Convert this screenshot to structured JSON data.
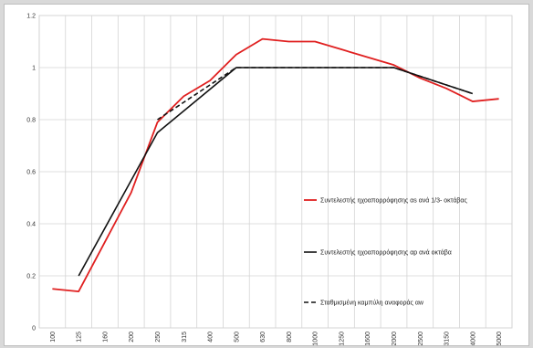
{
  "chart_data": {
    "type": "line",
    "categories": [
      "100",
      "125",
      "160",
      "200",
      "250",
      "315",
      "400",
      "500",
      "630",
      "800",
      "1000",
      "1250",
      "1600",
      "2000",
      "2500",
      "3150",
      "4000",
      "5000"
    ],
    "ylim": [
      0,
      1.2
    ],
    "yticks": [
      "0",
      "0.2",
      "0.4",
      "0.6",
      "0.8",
      "1",
      "1.2"
    ],
    "ytick_values": [
      0,
      0.2,
      0.4,
      0.6,
      0.8,
      1.0,
      1.2
    ],
    "grid": {
      "x": true,
      "y": true
    },
    "legend_position": "right",
    "series": [
      {
        "name": "Συντελεστής ηχοαπορρόφησης αs ανά 1/3- οκτάβας",
        "color": "#e02020",
        "dash": "solid",
        "values": [
          0.15,
          0.14,
          0.33,
          0.52,
          0.79,
          0.89,
          0.95,
          1.05,
          1.11,
          1.1,
          1.1,
          1.07,
          1.04,
          1.01,
          0.96,
          0.92,
          0.87,
          0.88
        ]
      },
      {
        "name": "Συντελεστής ηχοαπορρόφησης αp ανά οκτάβα",
        "color": "#111111",
        "dash": "solid",
        "values": [
          null,
          0.2,
          null,
          null,
          0.75,
          null,
          null,
          1.0,
          null,
          null,
          1.0,
          null,
          null,
          1.0,
          null,
          null,
          0.9,
          null
        ]
      },
      {
        "name": "Σταθμισμένη καμπύλη αναφοράς αw",
        "color": "#111111",
        "dash": "dashed",
        "values": [
          null,
          null,
          null,
          null,
          0.8,
          null,
          null,
          1.0,
          null,
          null,
          1.0,
          null,
          null,
          1.0,
          null,
          null,
          0.9,
          null
        ]
      }
    ]
  }
}
